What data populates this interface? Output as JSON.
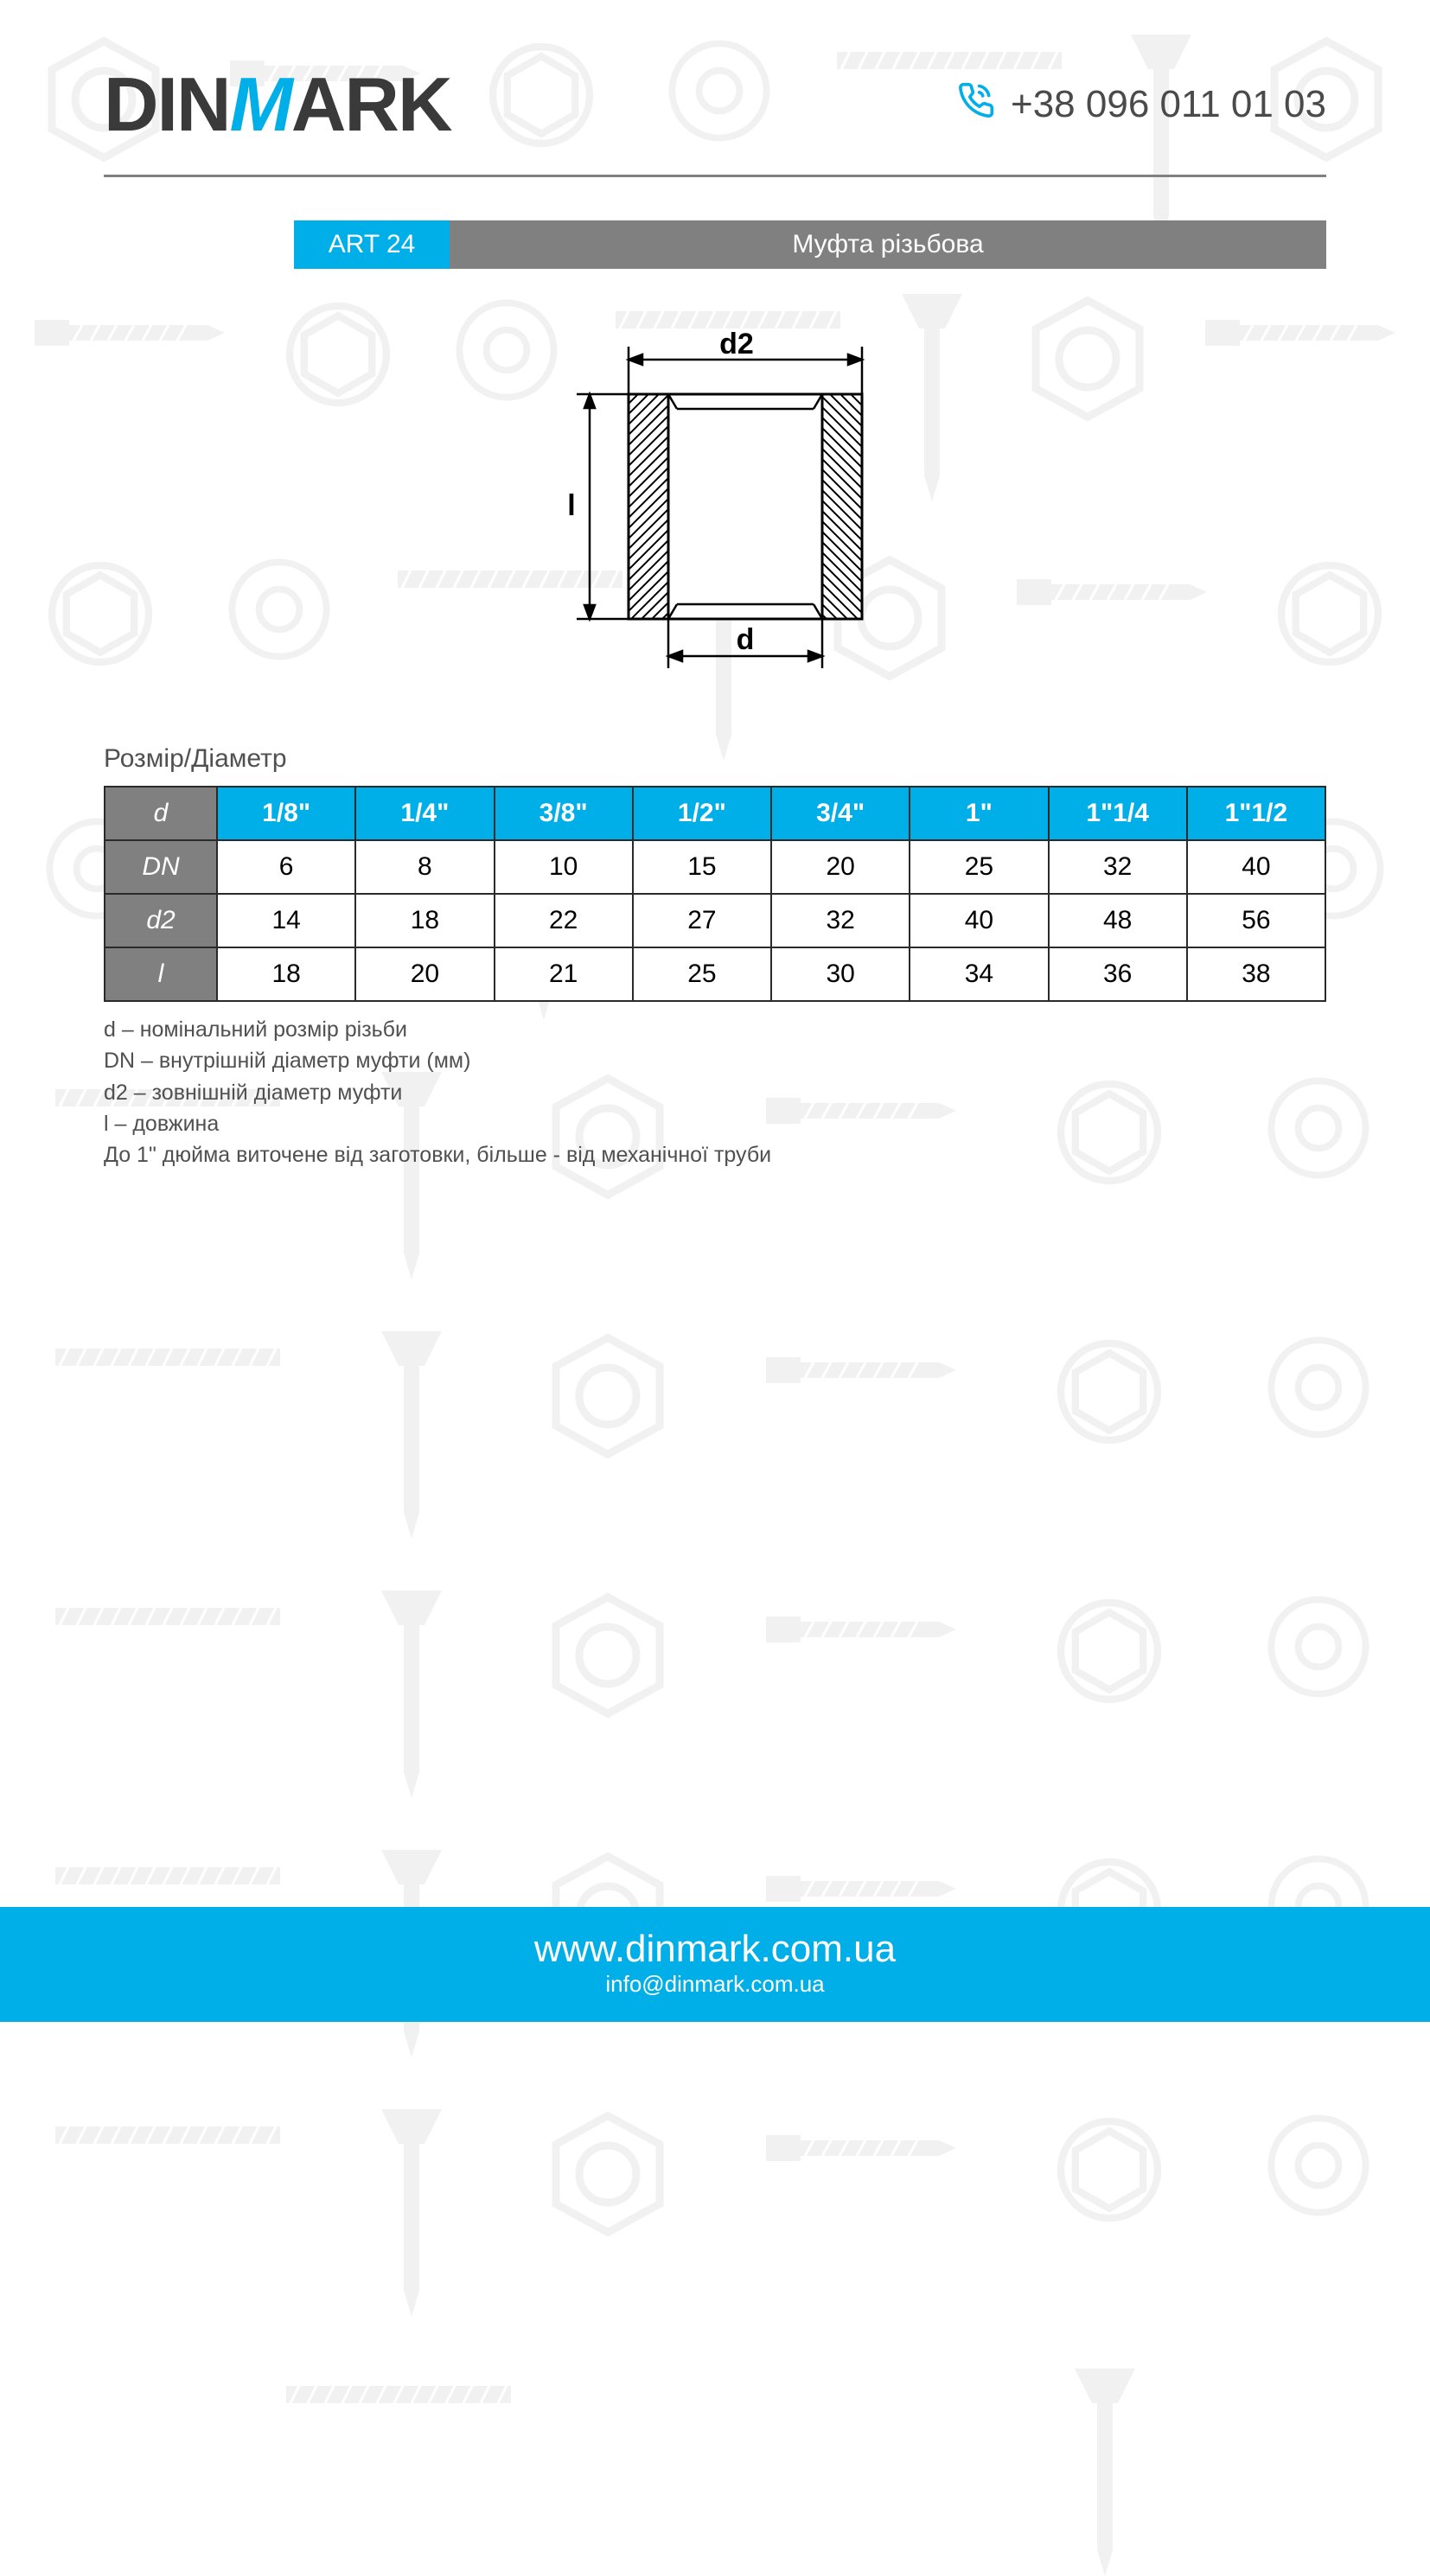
{
  "brand": {
    "name_pre": "DIN",
    "name_m": "M",
    "name_post": "ARK",
    "logo_text_color": "#3a3a3a",
    "logo_accent_color": "#00aee8"
  },
  "header": {
    "phone": "+38 096 011 01 03",
    "phone_icon_color": "#00aee8",
    "divider_color": "#808080"
  },
  "title_bar": {
    "code": "ART 24",
    "description": "Муфта різьбова",
    "code_bg": "#00aee8",
    "desc_bg": "#808080",
    "text_color": "#ffffff",
    "fontsize": 30
  },
  "diagram": {
    "label_top": "d2",
    "label_bottom": "d",
    "label_left": "l",
    "stroke_color": "#000000",
    "hatch_color": "#000000",
    "fontsize": 34
  },
  "table": {
    "title": "Розмір/Діаметр",
    "row_label_bg": "#808080",
    "header_bg": "#00aee8",
    "cell_bg": "#ffffff",
    "border_color": "#2a2a2a",
    "fontsize": 30,
    "rows": [
      {
        "label": "d",
        "is_header": true,
        "cells": [
          "1/8\"",
          "1/4\"",
          "3/8\"",
          "1/2\"",
          "3/4\"",
          "1\"",
          "1\"1/4",
          "1\"1/2"
        ]
      },
      {
        "label": "DN",
        "is_header": false,
        "cells": [
          "6",
          "8",
          "10",
          "15",
          "20",
          "25",
          "32",
          "40"
        ]
      },
      {
        "label": "d2",
        "is_header": false,
        "cells": [
          "14",
          "18",
          "22",
          "27",
          "32",
          "40",
          "48",
          "56"
        ]
      },
      {
        "label": "l",
        "is_header": false,
        "cells": [
          "18",
          "20",
          "21",
          "25",
          "30",
          "34",
          "36",
          "38"
        ]
      }
    ]
  },
  "legend": {
    "lines": [
      "d – номінальний розмір різьби",
      "DN  – внутрішній діаметр муфти (мм)",
      "d2 – зовнішній діаметр муфти",
      "l – довжина",
      "До 1\" дюйма виточене від заготовки, більше - від механічної труби"
    ],
    "fontsize": 25,
    "color": "#505050"
  },
  "footer": {
    "website": "www.dinmark.com.ua",
    "email": "info@dinmark.com.ua",
    "bg": "#00aee8",
    "text_color": "#ffffff"
  },
  "background": {
    "pattern_opacity": 0.08,
    "icon_color": "#808080"
  }
}
